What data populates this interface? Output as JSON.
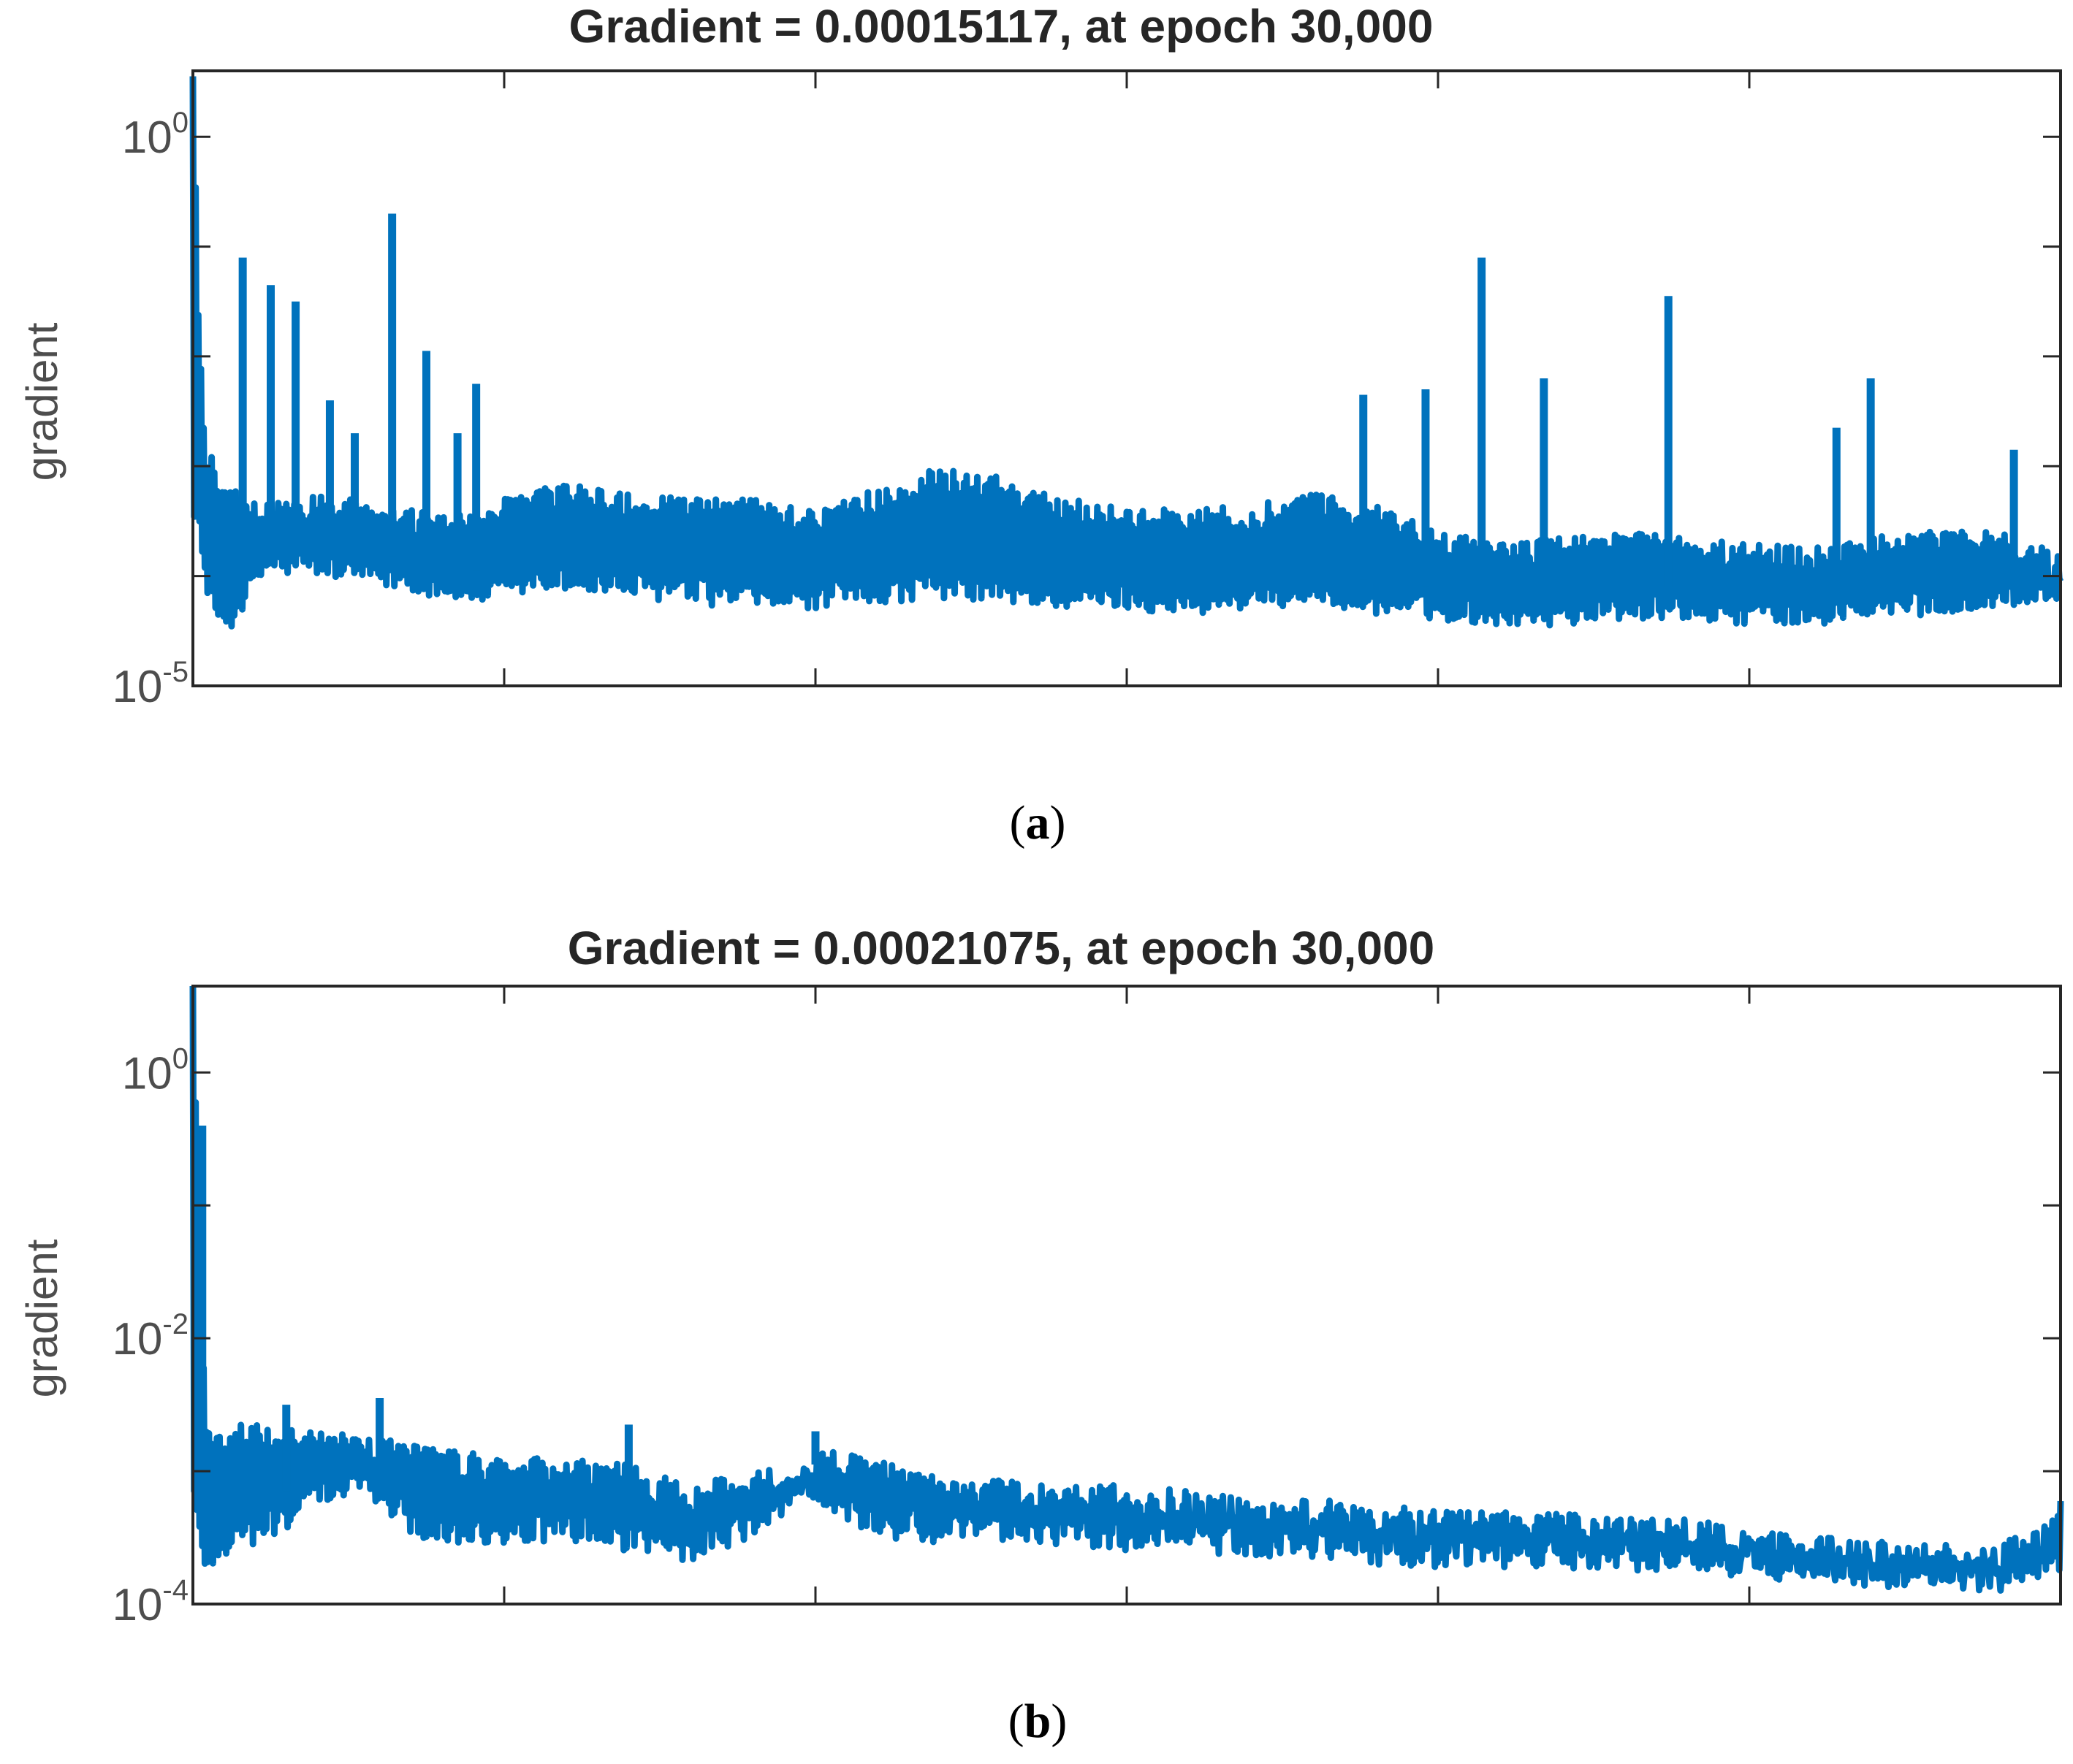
{
  "colors": {
    "series": "#0072bd",
    "axes": "#262626",
    "ticks": "#4d4d4d"
  },
  "chart_data": [
    {
      "id": "a",
      "type": "line",
      "title": "Gradient = 0.00015117, at epoch 30,000",
      "xlabel": "",
      "ylabel": "gradient",
      "caption": "a",
      "yscale": "log",
      "xlim": [
        0,
        30000
      ],
      "ylim_exp": [
        -5,
        0.6
      ],
      "xticks": [
        5000,
        10000,
        15000,
        20000,
        25000
      ],
      "yticks": [
        {
          "base": "10",
          "exp": "0",
          "value_exp": 0
        },
        {
          "base": "10",
          "exp": "-5",
          "value_exp": -5
        }
      ],
      "grid": false,
      "series": [
        {
          "name": "gradient",
          "x": [
            0,
            100,
            200,
            400,
            600,
            900,
            1200,
            1500,
            2000,
            2500,
            3000,
            3500,
            4000,
            4500,
            5000,
            5500,
            6000,
            7000,
            8000,
            9000,
            10000,
            11000,
            12000,
            13000,
            14000,
            15000,
            16000,
            17000,
            18000,
            19000,
            20000,
            21000,
            22000,
            23000,
            24000,
            25000,
            26000,
            27000,
            28000,
            29000,
            30000
          ],
          "upper_exp": [
            0.55,
            -1.8,
            -2.8,
            -3.0,
            -3.2,
            -3.3,
            -3.3,
            -3.3,
            -3.25,
            -3.3,
            -3.35,
            -3.4,
            -3.45,
            -3.4,
            -3.3,
            -3.2,
            -3.15,
            -3.25,
            -3.3,
            -3.3,
            -3.4,
            -3.2,
            -3.0,
            -3.1,
            -3.3,
            -3.35,
            -3.4,
            -3.35,
            -3.25,
            -3.35,
            -3.6,
            -3.7,
            -3.65,
            -3.6,
            -3.65,
            -3.7,
            -3.75,
            -3.65,
            -3.55,
            -3.6,
            -3.8
          ],
          "lower_exp": [
            -3.4,
            -3.7,
            -4.1,
            -4.45,
            -4.5,
            -4.2,
            -4.0,
            -4.0,
            -4.0,
            -4.05,
            -4.1,
            -4.15,
            -4.2,
            -4.25,
            -4.25,
            -4.15,
            -4.15,
            -4.2,
            -4.25,
            -4.3,
            -4.3,
            -4.25,
            -4.2,
            -4.25,
            -4.3,
            -4.3,
            -4.35,
            -4.3,
            -4.25,
            -4.35,
            -4.4,
            -4.45,
            -4.45,
            -4.4,
            -4.4,
            -4.45,
            -4.45,
            -4.4,
            -4.35,
            -4.3,
            -4.2
          ],
          "spikes": [
            {
              "x": 800,
              "y_exp": -1.1
            },
            {
              "x": 1250,
              "y_exp": -1.35
            },
            {
              "x": 1650,
              "y_exp": -1.5
            },
            {
              "x": 2200,
              "y_exp": -2.4
            },
            {
              "x": 2600,
              "y_exp": -2.7
            },
            {
              "x": 3200,
              "y_exp": -0.7
            },
            {
              "x": 3750,
              "y_exp": -1.95
            },
            {
              "x": 4250,
              "y_exp": -2.7
            },
            {
              "x": 4550,
              "y_exp": -2.25
            },
            {
              "x": 18800,
              "y_exp": -2.35
            },
            {
              "x": 19800,
              "y_exp": -2.3
            },
            {
              "x": 20700,
              "y_exp": -1.1
            },
            {
              "x": 21700,
              "y_exp": -2.2
            },
            {
              "x": 23700,
              "y_exp": -1.45
            },
            {
              "x": 26400,
              "y_exp": -2.65
            },
            {
              "x": 26950,
              "y_exp": -2.2
            },
            {
              "x": 29250,
              "y_exp": -2.85
            }
          ]
        }
      ]
    },
    {
      "id": "b",
      "type": "line",
      "title": "Gradient = 0.00021075, at epoch 30,000",
      "xlabel": "",
      "ylabel": "gradient",
      "caption": "b",
      "yscale": "log",
      "xlim": [
        0,
        30000
      ],
      "ylim_exp": [
        -4,
        0.65
      ],
      "xticks": [
        5000,
        10000,
        15000,
        20000,
        25000
      ],
      "yticks": [
        {
          "base": "10",
          "exp": "0",
          "value_exp": 0
        },
        {
          "base": "10",
          "exp": "-2",
          "value_exp": -2
        },
        {
          "base": "10",
          "exp": "-4",
          "value_exp": -4
        }
      ],
      "grid": false,
      "series": [
        {
          "name": "gradient",
          "x": [
            0,
            100,
            200,
            400,
            700,
            1000,
            1500,
            2000,
            2500,
            3000,
            3500,
            4000,
            4500,
            5000,
            6000,
            7000,
            8000,
            9000,
            9900,
            10100,
            11000,
            12000,
            13000,
            14000,
            15000,
            16000,
            17000,
            18000,
            19000,
            20000,
            21000,
            22000,
            23000,
            24000,
            25000,
            26000,
            27000,
            28000,
            29000,
            29800,
            30000
          ],
          "upper_exp": [
            0.65,
            -1.3,
            -2.5,
            -2.7,
            -2.65,
            -2.6,
            -2.65,
            -2.7,
            -2.7,
            -2.75,
            -2.8,
            -2.85,
            -2.85,
            -2.9,
            -2.9,
            -2.95,
            -3.1,
            -3.0,
            -2.95,
            -2.8,
            -2.9,
            -3.0,
            -3.05,
            -3.1,
            -3.1,
            -3.15,
            -3.2,
            -3.2,
            -3.25,
            -3.3,
            -3.3,
            -3.3,
            -3.35,
            -3.35,
            -3.45,
            -3.5,
            -3.5,
            -3.55,
            -3.55,
            -3.4,
            -3.05
          ],
          "lower_exp": [
            -3.2,
            -3.6,
            -3.75,
            -3.7,
            -3.6,
            -3.55,
            -3.45,
            -3.25,
            -3.2,
            -3.25,
            -3.5,
            -3.55,
            -3.55,
            -3.55,
            -3.55,
            -3.6,
            -3.7,
            -3.5,
            -3.2,
            -3.3,
            -3.5,
            -3.55,
            -3.55,
            -3.55,
            -3.6,
            -3.6,
            -3.65,
            -3.65,
            -3.7,
            -3.75,
            -3.75,
            -3.75,
            -3.75,
            -3.75,
            -3.8,
            -3.85,
            -3.9,
            -3.9,
            -3.9,
            -3.85,
            -3.75
          ],
          "spikes": [
            {
              "x": 150,
              "y_exp": -0.4
            },
            {
              "x": 1500,
              "y_exp": -2.5
            },
            {
              "x": 3000,
              "y_exp": -2.45
            },
            {
              "x": 7000,
              "y_exp": -2.65
            },
            {
              "x": 10000,
              "y_exp": -2.7
            }
          ]
        }
      ]
    }
  ]
}
